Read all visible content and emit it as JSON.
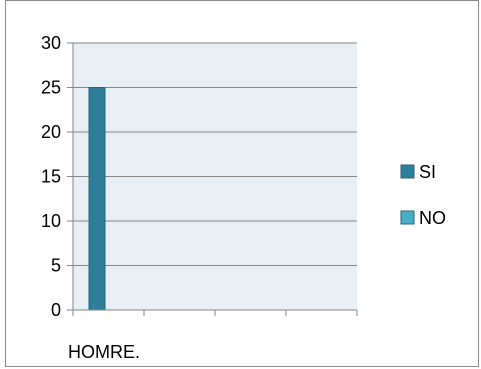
{
  "chart_data": {
    "type": "bar",
    "categories": [
      "HOMRE."
    ],
    "series": [
      {
        "name": "SI",
        "values": [
          25
        ],
        "color": "#2f7f9b"
      },
      {
        "name": "NO",
        "values": [
          0
        ],
        "color": "#4bacc6"
      }
    ],
    "ylim": [
      0,
      30
    ],
    "yticks": [
      0,
      5,
      10,
      15,
      20,
      25,
      30
    ],
    "grid": true,
    "plot_background": "#e9f0f5",
    "legend_position": "right"
  }
}
